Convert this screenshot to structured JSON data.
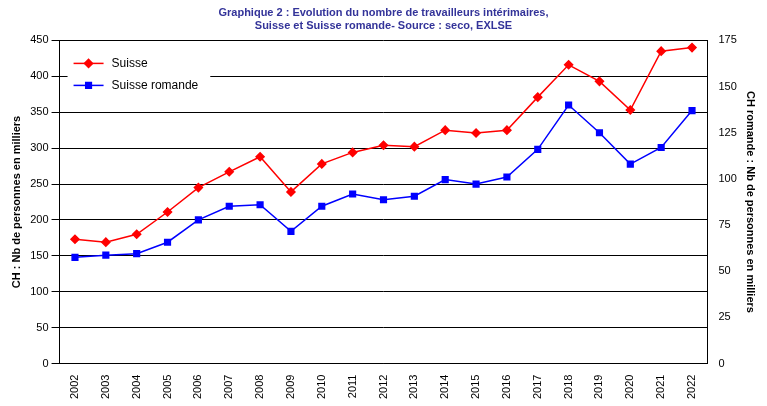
{
  "chart_data": {
    "type": "line",
    "title": [
      "Graphique 2 : Evolution du nombre de travailleurs intérimaires,",
      "Suisse et Suisse romande- Source : seco, EXLSE"
    ],
    "categories": [
      "2002",
      "2003",
      "2004",
      "2005",
      "2006",
      "2007",
      "2008",
      "2009",
      "2010",
      "2011",
      "2012",
      "2013",
      "2014",
      "2015",
      "2016",
      "2017",
      "2018",
      "2019",
      "2020",
      "2021",
      "2022"
    ],
    "series": [
      {
        "name": "Suisse",
        "color": "#ff0000",
        "marker": "diamond",
        "line_style": "solid",
        "axis": "y",
        "values": [
          173,
          169,
          180,
          211,
          245,
          267,
          288,
          239,
          278,
          294,
          304,
          302,
          325,
          321,
          325,
          371,
          416,
          393,
          353,
          435,
          440
        ]
      },
      {
        "name": "Suisse romande",
        "color": "#0000ff",
        "marker": "square",
        "line_style": "solid",
        "axis": "y2",
        "values": [
          57.5,
          58.7,
          59.5,
          65.7,
          77.8,
          85.2,
          86,
          71.6,
          85.2,
          91.8,
          88.7,
          90.6,
          99.6,
          97.2,
          101,
          116,
          140,
          125,
          108,
          117,
          137
        ]
      }
    ],
    "y_label": "CH : Nb de personnes en milliers",
    "y2_label": "CH romande : Nb de personnes en milliers",
    "ylim": [
      0,
      450
    ],
    "yticks": [
      0,
      50,
      100,
      150,
      200,
      250,
      300,
      350,
      400,
      450
    ],
    "y2lim": [
      0,
      175
    ],
    "y2ticks": [
      0,
      25,
      50,
      75,
      100,
      125,
      150,
      175
    ],
    "grid": true,
    "legend": "upper left"
  }
}
